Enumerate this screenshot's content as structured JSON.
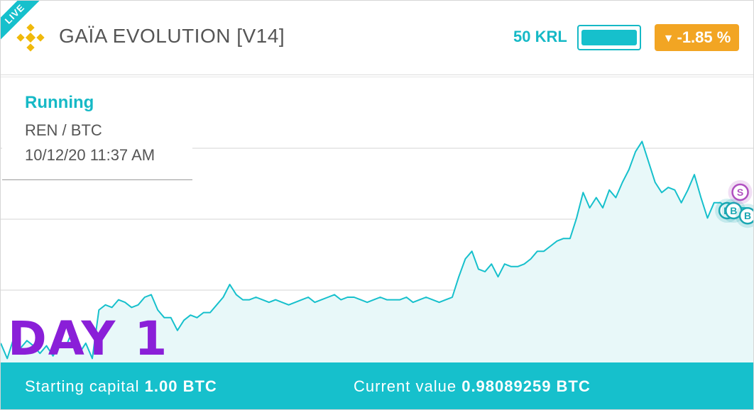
{
  "header": {
    "live_label": "LIVE",
    "logo_icon": "binance-diamond-icon",
    "title": "GAÏA EVOLUTION [V14]",
    "krl_label": "50 KRL",
    "krl_level": 1.0,
    "change_arrow": "▼",
    "change_value": "-1.85 %"
  },
  "info": {
    "status": "Running",
    "pair": "REN / BTC",
    "timestamp": "10/12/20 11:37 AM"
  },
  "overlay": {
    "day_label": "DAY 1"
  },
  "footer": {
    "starting_label": "Starting capital",
    "starting_value": "1.00 BTC",
    "current_label": "Current value",
    "current_value": "0.98089259 BTC"
  },
  "colors": {
    "accent": "#16c0cc",
    "badge": "#f2a523",
    "day_label": "#8a1fd8",
    "sell_marker": "#b04fc0",
    "buy_marker": "#1aa7b2"
  },
  "chart_data": {
    "type": "area",
    "title": "",
    "xlabel": "",
    "ylabel": "",
    "grid": true,
    "y_range": [
      0,
      100
    ],
    "values": [
      7,
      1,
      9,
      5,
      8,
      6,
      3,
      6,
      2,
      7,
      6,
      12,
      3,
      7,
      1,
      20,
      22,
      21,
      24,
      23,
      21,
      22,
      25,
      26,
      20,
      17,
      17,
      12,
      16,
      18,
      17,
      19,
      19,
      22,
      25,
      30,
      26,
      24,
      24,
      25,
      24,
      23,
      24,
      23,
      22,
      23,
      24,
      25,
      23,
      24,
      25,
      26,
      24,
      25,
      25,
      24,
      23,
      24,
      25,
      24,
      24,
      24,
      25,
      23,
      24,
      25,
      24,
      23,
      24,
      25,
      33,
      40,
      43,
      36,
      35,
      38,
      33,
      38,
      37,
      37,
      38,
      40,
      43,
      43,
      45,
      47,
      48,
      48,
      56,
      66,
      60,
      64,
      60,
      67,
      64,
      70,
      75,
      82,
      86,
      78,
      70,
      66,
      68,
      67,
      62,
      67,
      73,
      64,
      56,
      62,
      62,
      60,
      60,
      60,
      60,
      58
    ]
  },
  "markers": [
    {
      "label": "B",
      "type": "buy",
      "index": 111
    },
    {
      "label": "B",
      "type": "buy",
      "index": 112
    },
    {
      "label": "S",
      "type": "sell",
      "index": 113
    },
    {
      "label": "B",
      "type": "buy",
      "index": 115
    }
  ]
}
